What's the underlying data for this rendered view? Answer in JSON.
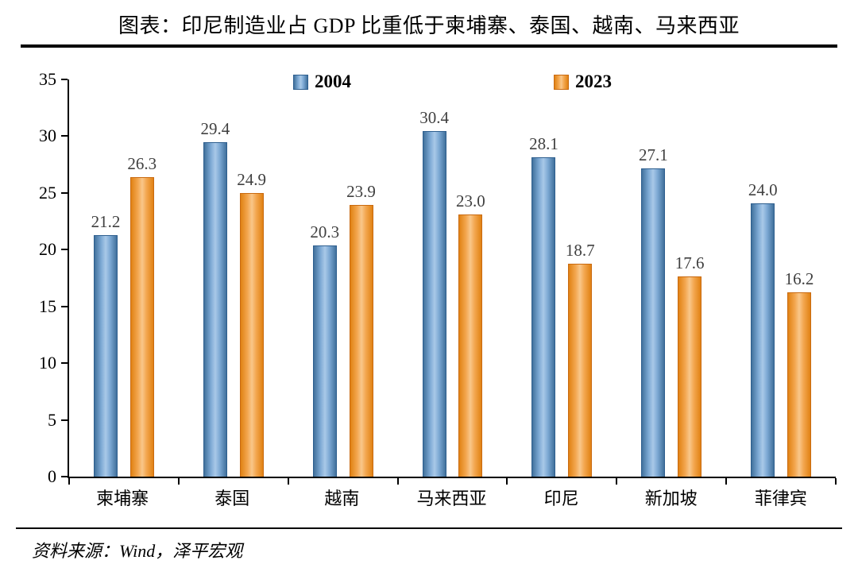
{
  "header": {
    "title": "图表：印尼制造业占 GDP 比重低于柬埔寨、泰国、越南、马来西亚"
  },
  "legend": [
    {
      "label": "2004",
      "color": "#41719c"
    },
    {
      "label": "2023",
      "color": "#f3a64e"
    }
  ],
  "chart_data": {
    "type": "bar",
    "title": "图表：印尼制造业占 GDP 比重低于柬埔寨、泰国、越南、马来西亚",
    "categories": [
      "柬埔寨",
      "泰国",
      "越南",
      "马来西亚",
      "印尼",
      "新加坡",
      "菲律宾"
    ],
    "series": [
      {
        "name": "2004",
        "color": "#41719c",
        "values": [
          21.2,
          29.4,
          20.3,
          30.4,
          28.1,
          27.1,
          24.0
        ]
      },
      {
        "name": "2023",
        "color": "#f3a64e",
        "values": [
          26.3,
          24.9,
          23.9,
          23.0,
          18.7,
          17.6,
          16.2
        ]
      }
    ],
    "xlabel": "",
    "ylabel": "",
    "ylim": [
      0,
      35
    ],
    "yticks": [
      0,
      5,
      10,
      15,
      20,
      25,
      30,
      35
    ],
    "grid": false,
    "legend_position": "top"
  },
  "source": {
    "text": "资料来源：Wind，泽平宏观"
  }
}
